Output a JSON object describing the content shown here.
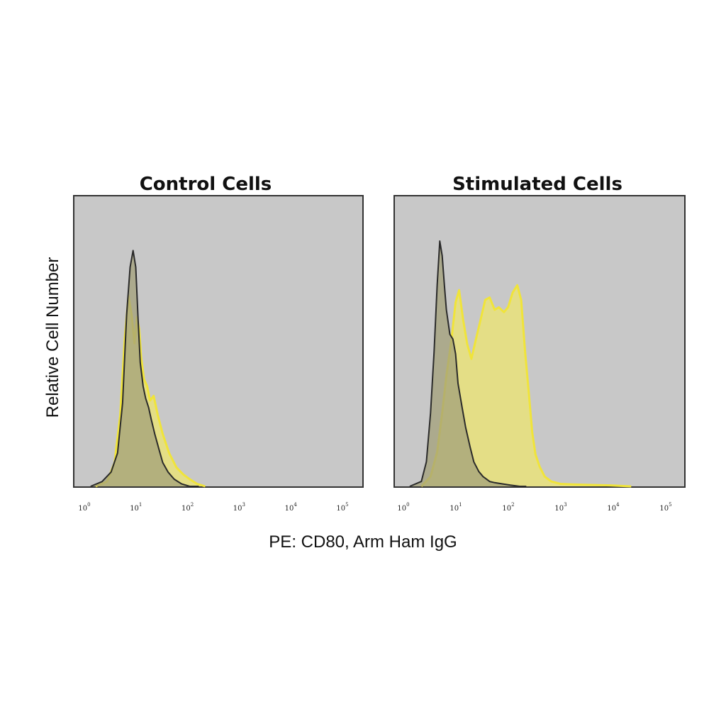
{
  "chart_data": [
    {
      "type": "area",
      "title": "Control Cells",
      "ylabel": "Relative Cell Number",
      "xlabel": "PE: CD80, Arm Ham IgG",
      "x_scale": "log",
      "xlim": [
        1,
        100000
      ],
      "ylim": [
        0,
        1.0
      ],
      "x_tick_labels": [
        {
          "base": "10",
          "exp": "0"
        },
        {
          "base": "10",
          "exp": "1"
        },
        {
          "base": "10",
          "exp": "2"
        },
        {
          "base": "10",
          "exp": "3"
        },
        {
          "base": "10",
          "exp": "4"
        },
        {
          "base": "10",
          "exp": "5"
        }
      ],
      "series": [
        {
          "color": "#e9e27a",
          "stroke": "#f0e43a",
          "x": [
            1.5,
            2.5,
            3.5,
            4.5,
            5.5,
            6.5,
            7.5,
            8.5,
            9.5,
            10.5,
            11.5,
            13,
            15,
            17,
            20,
            24,
            30,
            40,
            55,
            75,
            100,
            140,
            200
          ],
          "y": [
            0.0,
            0.02,
            0.1,
            0.3,
            0.62,
            0.8,
            0.72,
            0.6,
            0.71,
            0.66,
            0.54,
            0.45,
            0.42,
            0.36,
            0.38,
            0.3,
            0.22,
            0.14,
            0.08,
            0.05,
            0.03,
            0.01,
            0.0
          ]
        },
        {
          "color": "#a3a07a",
          "stroke": "#2a2a2a",
          "x": [
            1.2,
            2.0,
            3.0,
            4.0,
            5.0,
            6.0,
            7.0,
            8.0,
            9.0,
            10.0,
            11.0,
            12.5,
            14,
            16,
            18,
            21,
            25,
            30,
            38,
            50,
            70,
            100,
            150
          ],
          "y": [
            0.0,
            0.02,
            0.06,
            0.14,
            0.35,
            0.72,
            0.92,
            0.99,
            0.92,
            0.7,
            0.52,
            0.42,
            0.37,
            0.33,
            0.28,
            0.22,
            0.16,
            0.1,
            0.06,
            0.03,
            0.01,
            0.0,
            0.0
          ]
        }
      ]
    },
    {
      "type": "area",
      "title": "Stimulated Cells",
      "x_scale": "log",
      "xlim": [
        1,
        100000
      ],
      "ylim": [
        0,
        1.0
      ],
      "x_tick_labels": [
        {
          "base": "10",
          "exp": "0"
        },
        {
          "base": "10",
          "exp": "1"
        },
        {
          "base": "10",
          "exp": "2"
        },
        {
          "base": "10",
          "exp": "3"
        },
        {
          "base": "10",
          "exp": "4"
        },
        {
          "base": "10",
          "exp": "5"
        }
      ],
      "series": [
        {
          "color": "#e9e27a",
          "stroke": "#f0e43a",
          "x": [
            2.0,
            3.0,
            4.0,
            5.0,
            6.0,
            7.5,
            9.0,
            10.5,
            12.5,
            15,
            18,
            22,
            27,
            33,
            40,
            50,
            60,
            75,
            90,
            110,
            135,
            160,
            190,
            220,
            260,
            300,
            360,
            450,
            600,
            900,
            1500,
            3000,
            8000,
            20000
          ],
          "y": [
            0.0,
            0.04,
            0.14,
            0.3,
            0.45,
            0.6,
            0.75,
            0.8,
            0.68,
            0.58,
            0.52,
            0.6,
            0.68,
            0.76,
            0.77,
            0.72,
            0.73,
            0.71,
            0.73,
            0.79,
            0.82,
            0.76,
            0.55,
            0.4,
            0.22,
            0.13,
            0.08,
            0.04,
            0.02,
            0.01,
            0.008,
            0.006,
            0.004,
            0.0
          ]
        },
        {
          "color": "#a3a07a",
          "stroke": "#2a2a2a",
          "x": [
            1.2,
            2.0,
            2.5,
            3.0,
            3.5,
            4.0,
            4.5,
            5.0,
            5.5,
            6.0,
            7.0,
            8.0,
            9.0,
            10.0,
            12,
            14,
            17,
            20,
            25,
            30,
            40,
            50,
            70,
            100,
            150,
            200
          ],
          "y": [
            0.0,
            0.02,
            0.1,
            0.3,
            0.55,
            0.82,
            1.0,
            0.94,
            0.82,
            0.72,
            0.62,
            0.6,
            0.54,
            0.42,
            0.32,
            0.24,
            0.16,
            0.1,
            0.06,
            0.04,
            0.02,
            0.015,
            0.01,
            0.005,
            0.0,
            0.0
          ]
        }
      ]
    }
  ]
}
